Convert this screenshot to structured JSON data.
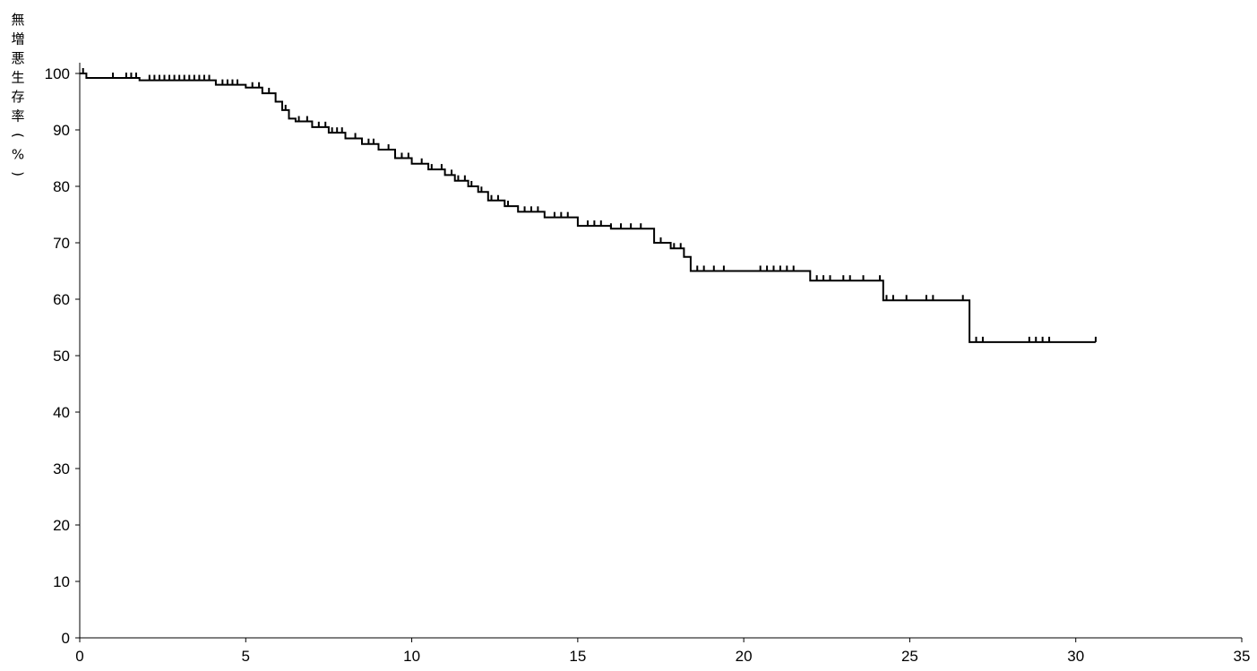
{
  "chart_data": {
    "type": "line",
    "title": "",
    "xlabel": "",
    "ylabel": "無増悪生存率（%）",
    "xlim": [
      0,
      35
    ],
    "ylim": [
      0,
      100
    ],
    "x_ticks": [
      "0",
      "5",
      "10",
      "15",
      "20",
      "25",
      "30",
      "35"
    ],
    "y_ticks": [
      "0",
      "10",
      "20",
      "30",
      "40",
      "50",
      "60",
      "70",
      "80",
      "90",
      "100"
    ],
    "grid": false,
    "legend": "none",
    "line_color": "#000000",
    "series": [
      {
        "step": true,
        "x": [
          0,
          0.2,
          1.8,
          4.1,
          5.0,
          5.5,
          5.9,
          6.1,
          6.3,
          6.5,
          7.0,
          7.5,
          8.0,
          8.5,
          9.0,
          9.5,
          10.0,
          10.5,
          11.0,
          11.3,
          11.7,
          12.0,
          12.3,
          12.8,
          13.2,
          14.0,
          15.0,
          16.0,
          17.3,
          17.8,
          18.2,
          18.4,
          22.0,
          24.2,
          26.8,
          30.6
        ],
        "y": [
          100,
          99.2,
          98.8,
          98.0,
          97.5,
          96.5,
          95.0,
          93.5,
          92.0,
          91.5,
          90.5,
          89.5,
          88.5,
          87.5,
          86.5,
          85.0,
          84.0,
          83.0,
          82.0,
          81.0,
          80.0,
          79.0,
          77.5,
          76.5,
          75.5,
          74.5,
          73.0,
          72.5,
          70.0,
          69.0,
          67.5,
          65.0,
          63.3,
          59.8,
          52.4,
          52.4
        ]
      }
    ],
    "censor_marks": [
      0.1,
      1.0,
      1.4,
      1.55,
      1.7,
      2.1,
      2.25,
      2.4,
      2.55,
      2.7,
      2.85,
      3.0,
      3.15,
      3.3,
      3.45,
      3.6,
      3.75,
      3.9,
      4.3,
      4.45,
      4.6,
      4.75,
      5.2,
      5.4,
      5.7,
      6.2,
      6.6,
      6.85,
      7.2,
      7.4,
      7.6,
      7.75,
      7.9,
      8.3,
      8.5,
      8.7,
      8.85,
      9.0,
      9.3,
      9.5,
      9.7,
      9.9,
      10.3,
      10.6,
      10.9,
      11.2,
      11.4,
      11.6,
      11.8,
      12.1,
      12.4,
      12.6,
      12.9,
      13.4,
      13.6,
      13.8,
      14.3,
      14.5,
      14.7,
      15.3,
      15.5,
      15.7,
      16.0,
      16.3,
      16.6,
      16.9,
      17.5,
      17.9,
      18.1,
      18.6,
      18.8,
      19.1,
      19.4,
      20.5,
      20.7,
      20.9,
      21.1,
      21.3,
      21.5,
      22.2,
      22.4,
      22.6,
      23.0,
      23.2,
      23.6,
      24.1,
      24.3,
      24.5,
      24.9,
      25.5,
      25.7,
      26.6,
      27.0,
      27.2,
      28.6,
      28.8,
      29.0,
      29.2,
      30.6
    ]
  }
}
